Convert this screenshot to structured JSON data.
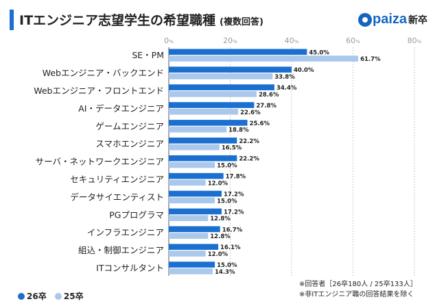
{
  "header": {
    "title": "ITエンジニア志望学生の希望職種",
    "subtitle": "(複数回答)"
  },
  "brand": {
    "name": "paiza",
    "tagline": "新卒",
    "icon": "paiza-logo-icon",
    "color": "#1565c0"
  },
  "colors": {
    "series_26": "#1a6fd1",
    "series_25": "#a9c8ec",
    "accent": "#1a6fd1"
  },
  "legend": {
    "series_26": "26卒",
    "series_25": "25卒"
  },
  "notes": {
    "respondents": "※回答者［26卒180人 / 25卒133人］",
    "exclusion": "※非ITエンジニア職の回答結果を除く"
  },
  "chart_data": {
    "type": "bar",
    "orientation": "horizontal",
    "title": "ITエンジニア志望学生の希望職種 (複数回答)",
    "xlim": [
      0,
      80
    ],
    "ticks": [
      {
        "value": 0,
        "label": "0",
        "unit": "%"
      },
      {
        "value": 20,
        "label": "20",
        "unit": "%"
      },
      {
        "value": 40,
        "label": "40",
        "unit": "%"
      },
      {
        "value": 60,
        "label": "60",
        "unit": "%"
      },
      {
        "value": 80,
        "label": "80",
        "unit": "%"
      }
    ],
    "grid": true,
    "legend_position": "bottom-left",
    "categories": [
      "SE・PM",
      "Webエンジニア・バックエンド",
      "Webエンジニア・フロントエンド",
      "AI・データエンジニア",
      "ゲームエンジニア",
      "スマホエンジニア",
      "サーバ・ネットワークエンジニア",
      "セキュリティエンジニア",
      "データサイエンティスト",
      "PGプログラマ",
      "インフラエンジニア",
      "組込・制御エンジニア",
      "ITコンサルタント"
    ],
    "series": [
      {
        "name": "26卒",
        "values": [
          45.0,
          40.0,
          34.4,
          27.8,
          25.6,
          22.2,
          22.2,
          17.8,
          17.2,
          17.2,
          16.7,
          16.1,
          15.0
        ],
        "labels": [
          "45.0%",
          "40.0%",
          "34.4%",
          "27.8%",
          "25.6%",
          "22.2%",
          "22.2%",
          "17.8%",
          "17.2%",
          "17.2%",
          "16.7%",
          "16.1%",
          "15.0%"
        ]
      },
      {
        "name": "25卒",
        "values": [
          61.7,
          33.8,
          28.6,
          22.6,
          18.8,
          16.5,
          15.0,
          12.0,
          15.0,
          12.8,
          12.8,
          12.0,
          14.3
        ],
        "labels": [
          "61.7%",
          "33.8%",
          "28.6%",
          "22.6%",
          "18.8%",
          "16.5%",
          "15.0%",
          "12.0%",
          "15.0%",
          "12.8%",
          "12.8%",
          "12.0%",
          "14.3%"
        ]
      }
    ]
  }
}
